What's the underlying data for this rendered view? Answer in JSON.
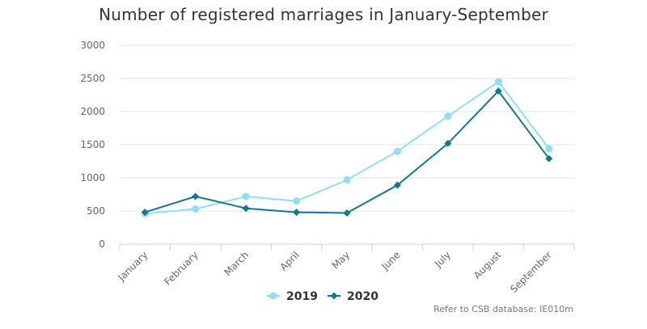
{
  "chart_data": {
    "type": "line",
    "title": "Number of registered marriages in January-September",
    "categories": [
      "January",
      "February",
      "March",
      "April",
      "May",
      "June",
      "July",
      "August",
      "September"
    ],
    "yticks": [
      "0",
      "500",
      "1000",
      "1500",
      "2000",
      "2500",
      "3000"
    ],
    "ylim": [
      0,
      3000
    ],
    "grid": true,
    "legend_position": "bottom-center",
    "series": [
      {
        "name": "2019",
        "color": "#8fdfee",
        "marker": "circle",
        "values": [
          460,
          530,
          720,
          650,
          970,
          1400,
          1930,
          2450,
          1440
        ]
      },
      {
        "name": "2020",
        "color": "#0e7a8c",
        "marker": "diamond",
        "values": [
          480,
          720,
          540,
          480,
          470,
          890,
          1520,
          2310,
          1290
        ]
      }
    ]
  },
  "source_note": "Refer to CSB database: IE010m"
}
